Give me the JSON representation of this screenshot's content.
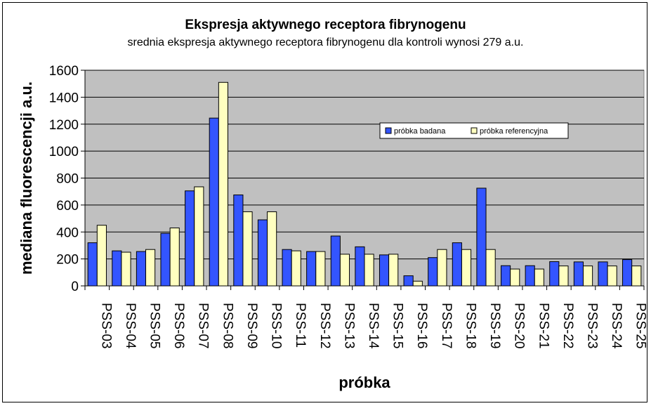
{
  "chart_data": {
    "type": "bar",
    "title": "Ekspresja aktywnego receptora fibrynogenu",
    "subtitle": "srednia ekspresja aktywnego receptora fibrynogenu dla kontroli wynosi 279 a.u.",
    "xlabel": "próbka",
    "ylabel": "mediana fluorescencji a.u.",
    "ylim": [
      0,
      1600
    ],
    "yticks": [
      "0",
      "200",
      "400",
      "600",
      "800",
      "1000",
      "1200",
      "1400",
      "1600"
    ],
    "grid": true,
    "legend_position": "top-right",
    "plot_background": "#c0c0c0",
    "categories": [
      "PSS-03",
      "PSS-04",
      "PSS-05",
      "PSS-06",
      "PSS-07",
      "PSS-08",
      "PSS-09",
      "PSS-10",
      "PSS-11",
      "PSS-12",
      "PSS-13",
      "PSS-14",
      "PSS-15",
      "PSS-16",
      "PSS-17",
      "PSS-18",
      "PSS-19",
      "PSS-20",
      "PSS-21",
      "PSS-22",
      "PSS-23",
      "PSS-24",
      "PSS-25"
    ],
    "series": [
      {
        "name": "próbka badana",
        "color": "#3355ff",
        "values": [
          320,
          260,
          255,
          390,
          705,
          1245,
          675,
          490,
          270,
          255,
          370,
          290,
          230,
          75,
          210,
          320,
          725,
          150,
          150,
          180,
          178,
          178,
          195
        ]
      },
      {
        "name": "próbka referencyjna",
        "color": "#ffffc0",
        "values": [
          450,
          250,
          270,
          430,
          735,
          1510,
          550,
          550,
          260,
          255,
          235,
          235,
          235,
          35,
          270,
          270,
          270,
          125,
          125,
          148,
          148,
          148,
          148
        ]
      }
    ]
  }
}
